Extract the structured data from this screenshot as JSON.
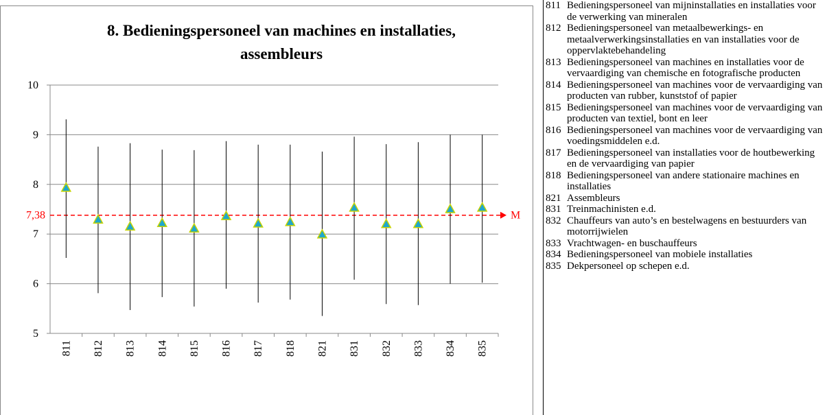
{
  "chart_data": {
    "type": "errorbar",
    "title": "8. Bedieningspersoneel van machines en installaties, assembleurs",
    "categories": [
      "811",
      "812",
      "813",
      "814",
      "815",
      "816",
      "817",
      "818",
      "821",
      "831",
      "832",
      "833",
      "834",
      "835"
    ],
    "values": [
      7.93,
      7.29,
      7.15,
      7.22,
      7.11,
      7.36,
      7.21,
      7.24,
      6.99,
      7.53,
      7.2,
      7.2,
      7.5,
      7.53
    ],
    "low": [
      6.52,
      5.81,
      5.47,
      5.73,
      5.54,
      5.9,
      5.62,
      5.68,
      5.35,
      6.08,
      5.59,
      5.57,
      6.0,
      6.02
    ],
    "high": [
      9.31,
      8.76,
      8.83,
      8.7,
      8.69,
      8.87,
      8.8,
      8.8,
      8.66,
      8.96,
      8.81,
      8.85,
      9.0,
      9.0
    ],
    "color": "#1fa7cc",
    "marker_edge_color": "#c6d300",
    "ylim": [
      5,
      10
    ],
    "yticks": [
      5,
      6,
      7,
      8,
      9,
      10
    ],
    "grid": true,
    "reference": {
      "value": 7.38,
      "label": "7,38",
      "name": "M",
      "color": "#ff0000"
    },
    "legend_table": [
      {
        "code": "811",
        "text": "Bedieningspersoneel van mijninstallaties en installaties voor de verwerking van mineralen"
      },
      {
        "code": "812",
        "text": "Bedieningspersoneel van metaalbewerkings- en metaalverwerkingsinstallaties en van installaties voor de oppervlaktebehandeling"
      },
      {
        "code": "813",
        "text": "Bedieningspersoneel van machines en installaties voor de vervaardiging van chemische en fotografische producten"
      },
      {
        "code": "814",
        "text": "Bedieningspersoneel van machines voor de vervaardiging van producten van rubber, kunststof of papier"
      },
      {
        "code": "815",
        "text": "Bedieningspersoneel van machines voor de vervaardiging van producten van textiel, bont en leer"
      },
      {
        "code": "816",
        "text": "Bedieningspersoneel van machines voor de vervaardiging van voedingsmiddelen e.d."
      },
      {
        "code": "817",
        "text": "Bedieningspersoneel van installaties voor de houtbewerking en de vervaardiging van papier"
      },
      {
        "code": "818",
        "text": "Bedieningspersoneel van andere stationaire machines en installaties"
      },
      {
        "code": "821",
        "text": "Assembleurs"
      },
      {
        "code": "831",
        "text": "Treinmachinisten e.d."
      },
      {
        "code": "832",
        "text": "Chauffeurs van auto’s en bestelwagens en bestuurders van motorrijwielen"
      },
      {
        "code": "833",
        "text": "Vrachtwagen- en buschauffeurs"
      },
      {
        "code": "834",
        "text": "Bedieningspersoneel van mobiele installaties"
      },
      {
        "code": "835",
        "text": "Dekpersoneel op schepen e.d."
      }
    ]
  }
}
